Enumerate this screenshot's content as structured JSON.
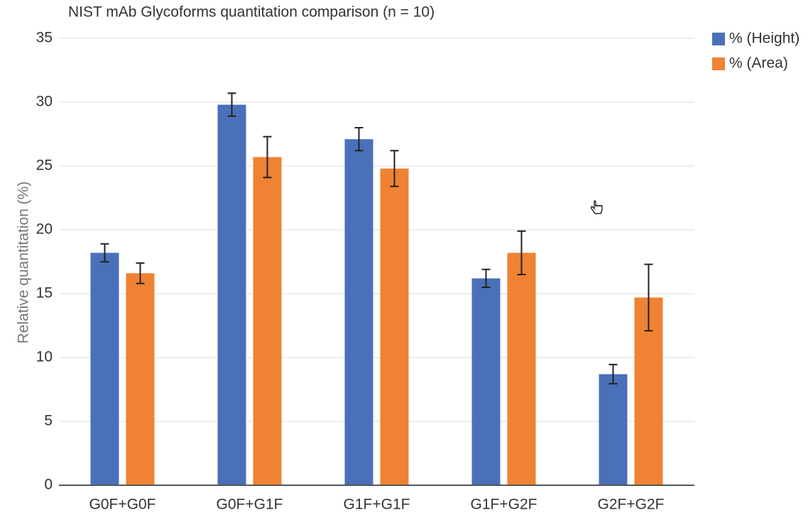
{
  "chart_data": {
    "type": "bar",
    "title": "NIST mAb Glycoforms quantitation comparison (n = 10)",
    "y_label": "Relative quantitation (%)",
    "categories": [
      "G0F+G0F",
      "G0F+G1F",
      "G1F+G1F",
      "G1F+G2F",
      "G2F+G2F"
    ],
    "series": [
      {
        "name": "% (Height)",
        "color": "#4a70b9",
        "values": [
          18.2,
          29.8,
          27.1,
          16.2,
          8.7
        ],
        "errors": [
          0.7,
          0.9,
          0.9,
          0.7,
          0.75
        ]
      },
      {
        "name": "% (Area)",
        "color": "#ef8233",
        "values": [
          16.6,
          25.7,
          24.8,
          18.2,
          14.7
        ],
        "errors": [
          0.8,
          1.6,
          1.4,
          1.7,
          2.6
        ]
      }
    ],
    "ylim": [
      0,
      35
    ],
    "yticks": [
      0,
      5,
      10,
      15,
      20,
      25,
      30,
      35
    ],
    "grid": true,
    "legend": "top-right"
  }
}
